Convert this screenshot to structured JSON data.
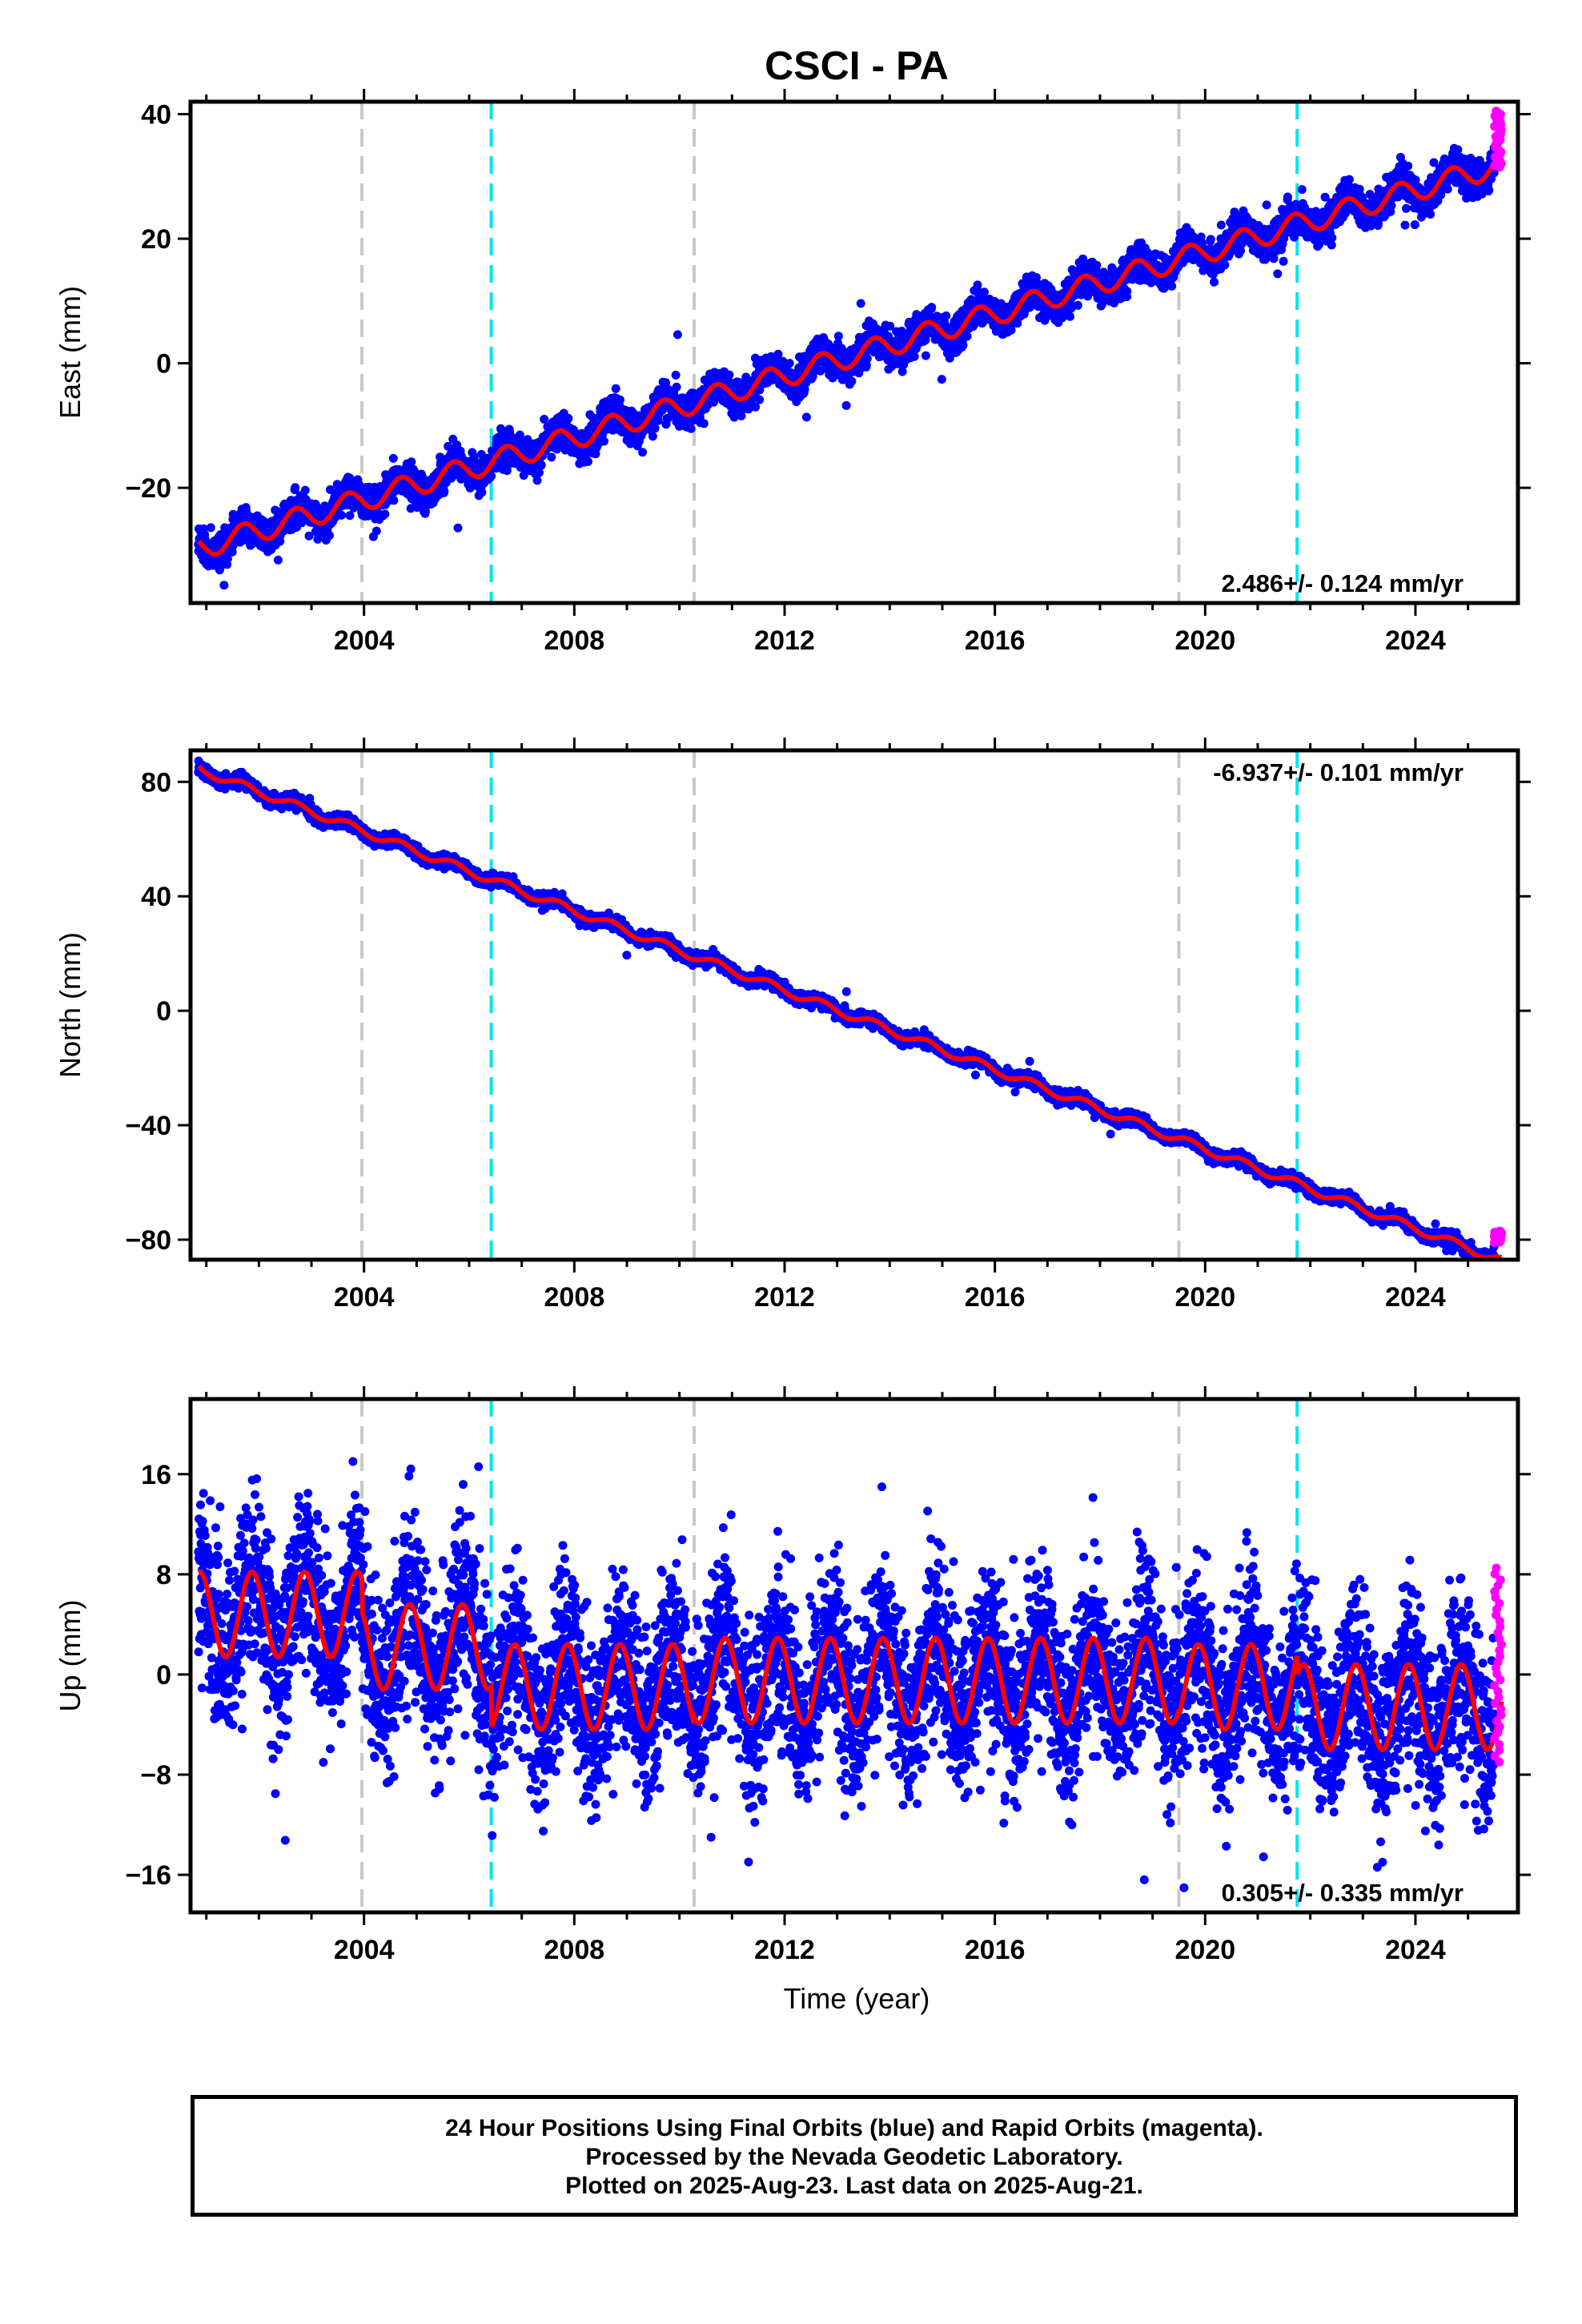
{
  "chart_data": {
    "type": "scatter",
    "title": "CSCI - PA",
    "xlabel": "Time (year)",
    "xlim": [
      2000.7,
      2025.95
    ],
    "x_ticks": [
      2004,
      2008,
      2012,
      2016,
      2020,
      2024
    ],
    "x_tick_labels": [
      "2004",
      "2008",
      "2012",
      "2016",
      "2020",
      "2024"
    ],
    "vertical_lines": [
      {
        "year": 2003.96,
        "color": "#c8c8c8",
        "style": "dashed"
      },
      {
        "year": 2006.42,
        "color": "#00e5ee",
        "style": "dashed"
      },
      {
        "year": 2010.28,
        "color": "#c8c8c8",
        "style": "dashed"
      },
      {
        "year": 2019.5,
        "color": "#c8c8c8",
        "style": "dashed"
      },
      {
        "year": 2021.75,
        "color": "#00e5ee",
        "style": "dashed"
      }
    ],
    "colors": {
      "final": "#0000ff",
      "rapid": "#ff00ff",
      "model": "#ff0000"
    },
    "data_span": {
      "start": 2000.85,
      "final_end": 2025.5,
      "rapid_end": 2025.64
    },
    "panels": [
      {
        "ylabel": "East (mm)",
        "ylim": [
          -38.5,
          42
        ],
        "y_ticks": [
          -20,
          0,
          20,
          40
        ],
        "y_tick_labels": [
          "−20",
          "0",
          "20",
          "40"
        ],
        "rate_label": "2.486+/- 0.124 mm/yr",
        "rate_position": "bottom-right",
        "model": {
          "start_value": -29.7,
          "rate": 2.486,
          "annual_amplitude": 1.8,
          "phase_year": 0.45
        },
        "noise_sd": 1.3,
        "rapid_range": [
          31.5,
          40.5
        ]
      },
      {
        "ylabel": "North (mm)",
        "ylim": [
          -87,
          91
        ],
        "y_ticks": [
          -80,
          -40,
          0,
          40,
          80
        ],
        "y_tick_labels": [
          "−80",
          "−40",
          "0",
          "40",
          "80"
        ],
        "rate_label": "-6.937+/- 0.101 mm/yr",
        "rate_position": "top-right",
        "model": {
          "start_value": 84.5,
          "rate": -6.937,
          "annual_amplitude": 1.4,
          "phase_year": 0.45
        },
        "noise_sd": 1.0,
        "rapid_range": [
          -81,
          -77
        ]
      },
      {
        "ylabel": "Up (mm)",
        "ylim": [
          -19,
          22
        ],
        "y_ticks": [
          -16,
          -8,
          0,
          8,
          16
        ],
        "y_tick_labels": [
          "−16",
          "−8",
          "0",
          "8",
          "16"
        ],
        "rate_label": "0.305+/- 0.335 mm/yr",
        "rate_position": "bottom-right",
        "model_segments": [
          {
            "from": 2000.85,
            "to": 2003.96,
            "offset": 4.8
          },
          {
            "from": 2003.96,
            "to": 2006.42,
            "offset": 2.2
          },
          {
            "from": 2006.42,
            "to": 2010.28,
            "offset": -1.0
          },
          {
            "from": 2010.28,
            "to": 2019.5,
            "offset": -0.5
          },
          {
            "from": 2019.5,
            "to": 2021.75,
            "offset": -1.0
          },
          {
            "from": 2021.75,
            "to": 2025.65,
            "offset": -2.6
          }
        ],
        "annual_amplitude": 3.4,
        "phase_year": 0.62,
        "noise_sd": 3.4,
        "rapid_range": [
          -7,
          8.5
        ]
      }
    ]
  },
  "footer": {
    "line1": "24 Hour Positions Using Final Orbits (blue) and Rapid Orbits (magenta).",
    "line2": "Processed by the Nevada Geodetic Laboratory.",
    "line3": "Plotted on 2025-Aug-23. Last data on 2025-Aug-21."
  }
}
